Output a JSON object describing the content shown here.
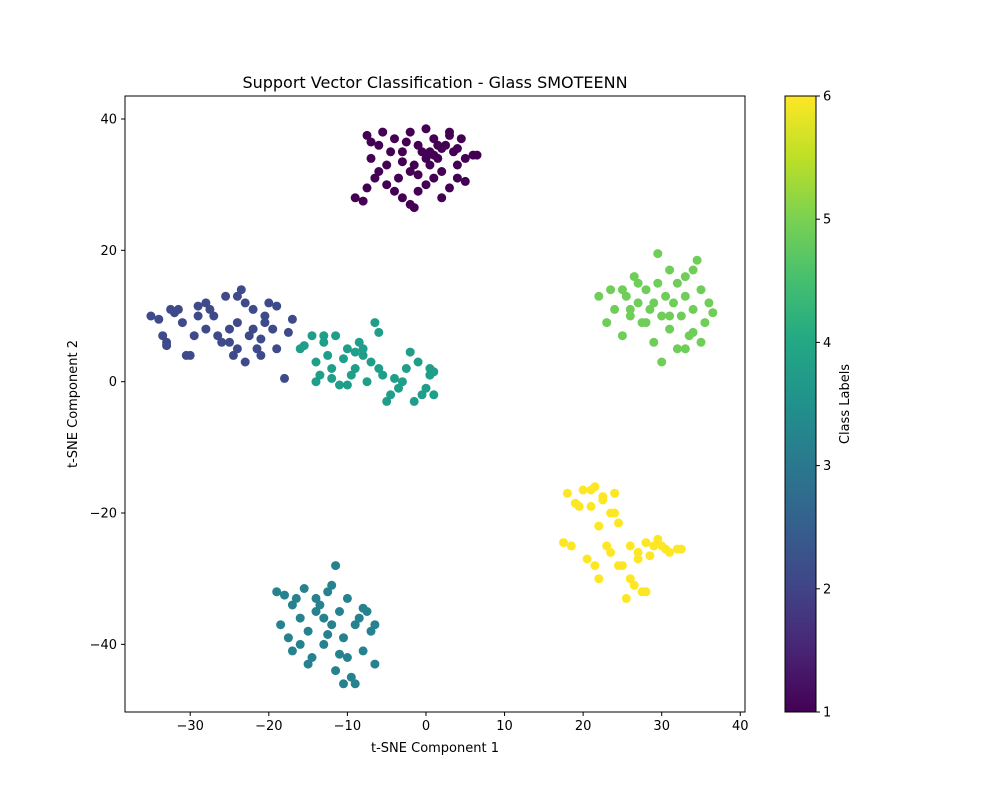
{
  "chart_data": {
    "type": "scatter",
    "title": "Support Vector Classification - Glass SMOTEENN",
    "xlabel": "t-SNE Component 1",
    "ylabel": "t-SNE Component 2",
    "xlim": [
      -38.3,
      40.6
    ],
    "ylim": [
      -50.3,
      43.5
    ],
    "xticks": [
      -30,
      -20,
      -10,
      0,
      10,
      20,
      30,
      40
    ],
    "yticks": [
      -40,
      -20,
      0,
      20,
      40
    ],
    "grid": false,
    "colorbar": {
      "label": "Class Labels",
      "range": [
        1,
        6
      ],
      "ticks": [
        1,
        2,
        3,
        4,
        5,
        6
      ],
      "colormap": "viridis",
      "class_colors": {
        "1": "#440154",
        "2": "#3e4a89",
        "3": "#26828e",
        "4": "#1f9e89",
        "5": "#6ece58",
        "6": "#fde725"
      }
    },
    "series": [
      {
        "class": 1,
        "color": "#440154",
        "points": [
          [
            -7.5,
            37.5
          ],
          [
            -7,
            34
          ],
          [
            -6,
            36
          ],
          [
            -5.5,
            38
          ],
          [
            -5,
            33
          ],
          [
            -4,
            37
          ],
          [
            -3,
            35
          ],
          [
            -2,
            38
          ],
          [
            -1.5,
            33
          ],
          [
            -1,
            36
          ],
          [
            0,
            38.5
          ],
          [
            0.5,
            35
          ],
          [
            1,
            37
          ],
          [
            1.5,
            34
          ],
          [
            2,
            32
          ],
          [
            2.5,
            36
          ],
          [
            3,
            38
          ],
          [
            3.5,
            35
          ],
          [
            4,
            33
          ],
          [
            4.5,
            37
          ],
          [
            5,
            34
          ],
          [
            6,
            34.5
          ],
          [
            6.5,
            34.5
          ],
          [
            -9,
            28
          ],
          [
            -8,
            27.5
          ],
          [
            -7.5,
            29.5
          ],
          [
            -6.5,
            31
          ],
          [
            -5,
            30
          ],
          [
            -4,
            29
          ],
          [
            -3,
            28
          ],
          [
            -2,
            27
          ],
          [
            -1,
            29
          ],
          [
            0,
            30
          ],
          [
            1,
            31
          ],
          [
            2,
            28
          ],
          [
            3,
            29.5
          ],
          [
            4,
            31
          ],
          [
            5,
            30.5
          ],
          [
            -3.5,
            31
          ],
          [
            -2,
            32
          ],
          [
            -1,
            31.5
          ],
          [
            0.5,
            33
          ],
          [
            1.5,
            36
          ],
          [
            -0.5,
            35
          ],
          [
            0,
            34
          ],
          [
            1,
            34.5
          ],
          [
            2,
            35.5
          ],
          [
            -4.5,
            35
          ],
          [
            -6,
            32
          ],
          [
            -2.5,
            36.5
          ],
          [
            -1.5,
            26.5
          ],
          [
            3,
            37.5
          ],
          [
            -7,
            36.5
          ],
          [
            -3,
            33.5
          ],
          [
            4,
            35.5
          ]
        ]
      },
      {
        "class": 2,
        "color": "#3e4a89",
        "points": [
          [
            -35,
            10
          ],
          [
            -34,
            9.5
          ],
          [
            -33.5,
            7
          ],
          [
            -33,
            6
          ],
          [
            -32.5,
            11
          ],
          [
            -32,
            10.5
          ],
          [
            -31,
            9
          ],
          [
            -30,
            4
          ],
          [
            -29.5,
            7
          ],
          [
            -29,
            11.5
          ],
          [
            -28,
            12
          ],
          [
            -28,
            8
          ],
          [
            -27,
            10
          ],
          [
            -26,
            6
          ],
          [
            -25.5,
            13
          ],
          [
            -25,
            8
          ],
          [
            -24.5,
            4
          ],
          [
            -24,
            9
          ],
          [
            -23.5,
            14
          ],
          [
            -23,
            12
          ],
          [
            -23,
            3
          ],
          [
            -22.5,
            7
          ],
          [
            -22,
            11
          ],
          [
            -21.5,
            5
          ],
          [
            -21,
            4
          ],
          [
            -20.5,
            9
          ],
          [
            -20,
            12
          ],
          [
            -19.5,
            8
          ],
          [
            -19,
            11.5
          ],
          [
            -18,
            0.5
          ],
          [
            -17.5,
            7.5
          ],
          [
            -17,
            9.5
          ],
          [
            -33,
            5.5
          ],
          [
            -30.5,
            4
          ],
          [
            -27.5,
            11
          ],
          [
            -26.5,
            7
          ],
          [
            -25,
            6
          ],
          [
            -24,
            5
          ],
          [
            -22,
            8
          ],
          [
            -20.5,
            10
          ],
          [
            -19,
            5
          ],
          [
            -31.5,
            11
          ],
          [
            -29,
            10
          ],
          [
            -21,
            6.5
          ],
          [
            -24,
            13
          ]
        ]
      },
      {
        "class": 3,
        "color": "#26828e",
        "points": [
          [
            -19,
            -32
          ],
          [
            -18.5,
            -37
          ],
          [
            -18,
            -32.5
          ],
          [
            -17.5,
            -39
          ],
          [
            -17,
            -41
          ],
          [
            -16.5,
            -33
          ],
          [
            -16,
            -36
          ],
          [
            -15.5,
            -31.5
          ],
          [
            -15,
            -38
          ],
          [
            -14.5,
            -42
          ],
          [
            -14,
            -35
          ],
          [
            -13.5,
            -34
          ],
          [
            -13,
            -40
          ],
          [
            -12.5,
            -32
          ],
          [
            -12,
            -37
          ],
          [
            -11.5,
            -44
          ],
          [
            -11,
            -35
          ],
          [
            -10.5,
            -39
          ],
          [
            -10,
            -33
          ],
          [
            -10,
            -42
          ],
          [
            -9.5,
            -45
          ],
          [
            -9,
            -37
          ],
          [
            -8.5,
            -36
          ],
          [
            -8,
            -41
          ],
          [
            -7.5,
            -35
          ],
          [
            -7,
            -38
          ],
          [
            -6.5,
            -43
          ],
          [
            -6.5,
            -37
          ],
          [
            -11.5,
            -28
          ],
          [
            -10.5,
            -46
          ],
          [
            -9,
            -46
          ],
          [
            -12,
            -31
          ],
          [
            -14,
            -33
          ],
          [
            -15,
            -43
          ],
          [
            -16,
            -40
          ],
          [
            -12.5,
            -38.5
          ],
          [
            -11,
            -41.5
          ],
          [
            -8,
            -34.5
          ],
          [
            -13,
            -36
          ],
          [
            -17,
            -34
          ]
        ]
      },
      {
        "class": 4,
        "color": "#1f9e89",
        "points": [
          [
            -16,
            5
          ],
          [
            -15.5,
            5.5
          ],
          [
            -14.5,
            7
          ],
          [
            -14,
            3
          ],
          [
            -13.5,
            1
          ],
          [
            -13,
            6
          ],
          [
            -12.5,
            4
          ],
          [
            -12,
            2
          ],
          [
            -11.5,
            7
          ],
          [
            -11,
            -0.5
          ],
          [
            -10.5,
            3.5
          ],
          [
            -10,
            5
          ],
          [
            -9.5,
            1
          ],
          [
            -9,
            2
          ],
          [
            -8.5,
            6
          ],
          [
            -8,
            4
          ],
          [
            -7.5,
            0
          ],
          [
            -7,
            3
          ],
          [
            -6.5,
            9
          ],
          [
            -6,
            7.5
          ],
          [
            -6,
            2
          ],
          [
            -5.5,
            1
          ],
          [
            -5,
            -3
          ],
          [
            -4.5,
            -2
          ],
          [
            -4,
            0.5
          ],
          [
            -3.5,
            -1
          ],
          [
            -3,
            0
          ],
          [
            -2.5,
            2
          ],
          [
            -2,
            4.5
          ],
          [
            -1.5,
            -3
          ],
          [
            -1,
            3
          ],
          [
            -0.5,
            -2
          ],
          [
            0,
            -1
          ],
          [
            0.5,
            1
          ],
          [
            0.5,
            2
          ],
          [
            1,
            -2
          ],
          [
            1,
            1.5
          ],
          [
            -14,
            0
          ],
          [
            -12,
            0.5
          ],
          [
            -10,
            -0.5
          ],
          [
            -8,
            5
          ],
          [
            -13,
            7
          ],
          [
            -9,
            4.5
          ]
        ]
      },
      {
        "class": 5,
        "color": "#6ece58",
        "points": [
          [
            22,
            13
          ],
          [
            23,
            9
          ],
          [
            23.5,
            14
          ],
          [
            24,
            11
          ],
          [
            25,
            7
          ],
          [
            25.5,
            13
          ],
          [
            26,
            10
          ],
          [
            26.5,
            16
          ],
          [
            27,
            12
          ],
          [
            27.5,
            9
          ],
          [
            28,
            14
          ],
          [
            28.5,
            11
          ],
          [
            29,
            6
          ],
          [
            29.5,
            19.5
          ],
          [
            29.5,
            15
          ],
          [
            30,
            10
          ],
          [
            30.5,
            13
          ],
          [
            31,
            8
          ],
          [
            31,
            17
          ],
          [
            31.5,
            12
          ],
          [
            32,
            5
          ],
          [
            32,
            15
          ],
          [
            32.5,
            10
          ],
          [
            33,
            13
          ],
          [
            33.5,
            7
          ],
          [
            34,
            17
          ],
          [
            34,
            11
          ],
          [
            34.5,
            18.5
          ],
          [
            35,
            14
          ],
          [
            35,
            6
          ],
          [
            35.5,
            9
          ],
          [
            36,
            12
          ],
          [
            36.5,
            10.5
          ],
          [
            30,
            3
          ],
          [
            33,
            5
          ],
          [
            28,
            9
          ],
          [
            26,
            11
          ],
          [
            27,
            15
          ],
          [
            29,
            12
          ],
          [
            31,
            10
          ],
          [
            34,
            7.5
          ],
          [
            25,
            14
          ],
          [
            33,
            16
          ]
        ]
      },
      {
        "class": 6,
        "color": "#fde725",
        "points": [
          [
            17.5,
            -24.5
          ],
          [
            18,
            -17
          ],
          [
            18.5,
            -25
          ],
          [
            19,
            -18.5
          ],
          [
            20,
            -16.5
          ],
          [
            20.5,
            -27
          ],
          [
            21,
            -19
          ],
          [
            21.5,
            -16
          ],
          [
            21.5,
            -28
          ],
          [
            22,
            -30
          ],
          [
            22,
            -22
          ],
          [
            22.5,
            -18
          ],
          [
            23,
            -25
          ],
          [
            23.5,
            -26
          ],
          [
            24,
            -20
          ],
          [
            24,
            -17
          ],
          [
            24.5,
            -21.5
          ],
          [
            25,
            -28
          ],
          [
            25.5,
            -33
          ],
          [
            26,
            -25
          ],
          [
            26.5,
            -31
          ],
          [
            27,
            -26
          ],
          [
            27.5,
            -32
          ],
          [
            28,
            -24.5
          ],
          [
            28.5,
            -26.5
          ],
          [
            29,
            -25
          ],
          [
            29.5,
            -24
          ],
          [
            30,
            -25
          ],
          [
            30.5,
            -25.5
          ],
          [
            31,
            -26
          ],
          [
            32,
            -25.5
          ],
          [
            32.5,
            -25.5
          ],
          [
            26,
            -30
          ],
          [
            27,
            -27
          ],
          [
            19.5,
            -19
          ],
          [
            23.5,
            -20
          ],
          [
            21,
            -16.5
          ],
          [
            22.5,
            -17.5
          ],
          [
            24.5,
            -28
          ],
          [
            28,
            -32
          ]
        ]
      }
    ]
  }
}
